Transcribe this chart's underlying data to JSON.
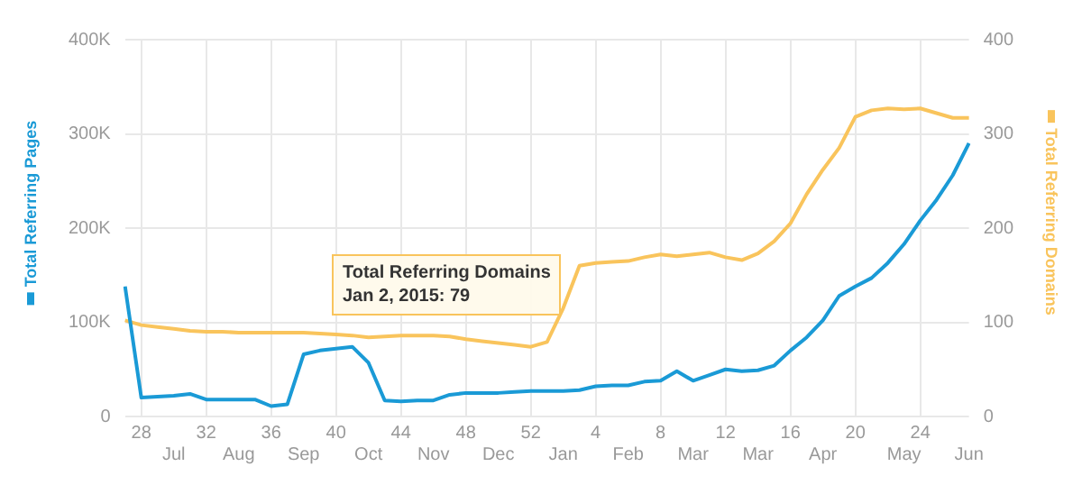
{
  "chart_data": {
    "type": "line",
    "grid": true,
    "marker": "none",
    "categories": [
      null,
      "28",
      null,
      "\nJul",
      null,
      "32",
      null,
      "\nAug",
      null,
      "36",
      null,
      "\nSep",
      null,
      "40",
      null,
      "\nOct",
      null,
      "44",
      null,
      "\nNov",
      null,
      "48",
      null,
      "\nDec",
      null,
      "52",
      null,
      "\nJan",
      null,
      "4",
      null,
      "\nFeb",
      null,
      "8",
      null,
      "\nMar",
      null,
      "12",
      null,
      "\nMar",
      null,
      "16",
      null,
      "\nApr",
      null,
      "20",
      null,
      null,
      "\nMay",
      "24",
      null,
      null,
      "\nJun"
    ],
    "ylim": [
      0,
      400000
    ],
    "yticks": [
      {
        "value": 0,
        "label": "0"
      },
      {
        "value": 100000,
        "label": "100K"
      },
      {
        "value": 200000,
        "label": "200K"
      },
      {
        "value": 300000,
        "label": "300K"
      },
      {
        "value": 400000,
        "label": "400K"
      }
    ],
    "y2lim": [
      0,
      400
    ],
    "y2ticks": [
      0,
      100,
      200,
      300,
      400
    ],
    "annotations": [
      "Total Referring Domains\nJan 2, 2015: 79"
    ],
    "series": [
      {
        "name": "Total Referring Pages",
        "color": "#1a9ad6",
        "values": [
          138000,
          20000,
          21000,
          22000,
          24000,
          18000,
          18000,
          18000,
          18000,
          11000,
          13000,
          66000,
          70000,
          72000,
          74000,
          57000,
          17000,
          16000,
          17000,
          17000,
          23000,
          25000,
          25000,
          25000,
          26000,
          27000,
          27000,
          27000,
          28000,
          32000,
          33000,
          33000,
          37000,
          38000,
          48000,
          38000,
          44000,
          50000,
          48000,
          49000,
          54000,
          70000,
          84000,
          102000,
          128000,
          138000,
          147000,
          163000,
          183000,
          208000,
          230000,
          256000,
          290000
        ]
      },
      {
        "name": "Total Referring Domains",
        "color": "#f9c45c",
        "axis": "y2",
        "values": [
          102,
          97,
          95,
          93,
          91,
          90,
          90,
          89,
          89,
          89,
          89,
          89,
          88,
          87,
          86,
          84,
          85,
          86,
          86,
          86,
          85,
          82,
          80,
          78,
          76,
          74,
          79,
          115,
          160,
          163,
          164,
          165,
          169,
          172,
          170,
          172,
          174,
          169,
          166,
          173,
          186,
          205,
          236,
          262,
          285,
          318,
          325,
          327,
          326,
          327,
          322,
          317,
          317
        ]
      }
    ]
  }
}
